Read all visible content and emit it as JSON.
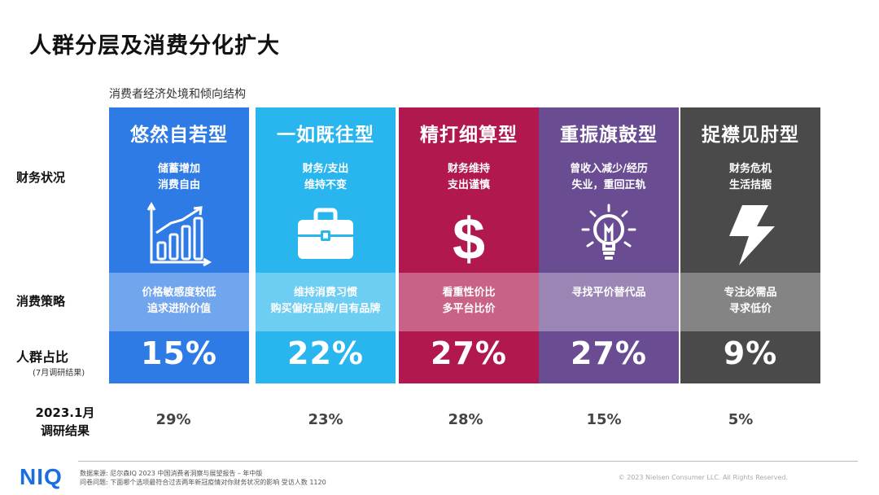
{
  "title": "人群分层及消费分化扩大",
  "subtitle": "消费者经济处境和倾向结构",
  "row_labels": {
    "finance": "财务状况",
    "strategy": "消费策略",
    "share": "人群占比",
    "share_note": "(7月调研结果)",
    "jan": "2023.1月\n调研结果"
  },
  "columns": [
    {
      "name": "悠然自若型",
      "color": "#2f7be6",
      "finance": "储蓄增加\n消费自由",
      "icon": "bar-chart-growth-icon",
      "strategy": "价格敏感度较低\n追求进阶价值",
      "share": "15%",
      "jan": "29%"
    },
    {
      "name": "一如既往型",
      "color": "#29b6ee",
      "finance": "财务/支出\n维持不变",
      "icon": "briefcase-icon",
      "strategy": "维持消费习惯\n购买偏好品牌/自有品牌",
      "share": "22%",
      "jan": "23%"
    },
    {
      "name": "精打细算型",
      "color": "#b0184f",
      "finance": "财务维持\n支出谨慎",
      "icon": "dollar-icon",
      "strategy": "看重性价比\n多平台比价",
      "share": "27%",
      "jan": "28%"
    },
    {
      "name": "重振旗鼓型",
      "color": "#6a4c93",
      "finance": "曾收入减少/经历\n失业，重回正轨",
      "icon": "lightbulb-icon",
      "strategy": "寻找平价替代品",
      "share": "27%",
      "jan": "15%"
    },
    {
      "name": "捉襟见肘型",
      "color": "#4a4a4a",
      "finance": "财务危机\n生活拮据",
      "icon": "lightning-icon",
      "strategy": "专注必需品\n寻求低价",
      "share": "9%",
      "jan": "5%"
    }
  ],
  "footer": {
    "logo": "NIQ",
    "source": "数据来源: 尼尔森IQ 2023 中国消费者洞察与展望报告 – 年中版",
    "question": "问卷问题: 下面哪个选项最符合过去两年新冠疫情对你财务状况的影响 受访人数 1120",
    "copyright": "© 2023  Nielsen Consumer LLC. All Rights Reserved."
  }
}
